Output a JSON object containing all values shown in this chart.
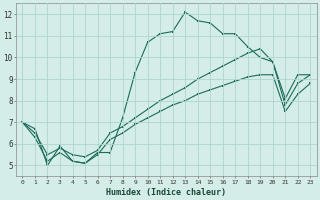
{
  "xlabel": "Humidex (Indice chaleur)",
  "bg_color": "#d5ede8",
  "grid_color": "#afd4cc",
  "line_color": "#1a6b5a",
  "xlim": [
    -0.5,
    23.5
  ],
  "ylim": [
    4.5,
    12.5
  ],
  "xticks": [
    0,
    1,
    2,
    3,
    4,
    5,
    6,
    7,
    8,
    9,
    10,
    11,
    12,
    13,
    14,
    15,
    16,
    17,
    18,
    19,
    20,
    21,
    22,
    23
  ],
  "yticks": [
    5,
    6,
    7,
    8,
    9,
    10,
    11,
    12
  ],
  "series": [
    {
      "x": [
        0,
        1,
        2,
        3,
        4,
        5,
        6,
        7,
        8,
        9,
        10,
        11,
        12,
        13,
        14,
        15,
        16,
        17,
        18,
        19,
        20,
        21,
        22,
        23
      ],
      "y": [
        7.0,
        6.7,
        5.0,
        5.9,
        5.2,
        5.1,
        5.6,
        5.6,
        7.2,
        9.3,
        10.7,
        11.1,
        11.2,
        12.1,
        11.7,
        11.6,
        11.1,
        11.1,
        10.5,
        10.0,
        9.8,
        8.1,
        9.2,
        9.2
      ]
    },
    {
      "x": [
        0,
        1,
        2,
        3,
        4,
        5,
        6,
        7,
        8,
        9,
        10,
        11,
        12,
        13,
        14,
        15,
        16,
        17,
        18,
        19,
        20,
        21,
        22,
        23
      ],
      "y": [
        7.0,
        6.5,
        5.5,
        5.8,
        5.5,
        5.4,
        5.7,
        6.5,
        6.8,
        7.2,
        7.6,
        8.0,
        8.3,
        8.6,
        9.0,
        9.3,
        9.6,
        9.9,
        10.2,
        10.4,
        9.8,
        7.8,
        8.8,
        9.2
      ]
    },
    {
      "x": [
        0,
        1,
        2,
        3,
        4,
        5,
        6,
        7,
        8,
        9,
        10,
        11,
        12,
        13,
        14,
        15,
        16,
        17,
        18,
        19,
        20,
        21,
        22,
        23
      ],
      "y": [
        7.0,
        6.3,
        5.2,
        5.6,
        5.2,
        5.1,
        5.5,
        6.2,
        6.5,
        6.9,
        7.2,
        7.5,
        7.8,
        8.0,
        8.3,
        8.5,
        8.7,
        8.9,
        9.1,
        9.2,
        9.2,
        7.5,
        8.3,
        8.8
      ]
    }
  ]
}
